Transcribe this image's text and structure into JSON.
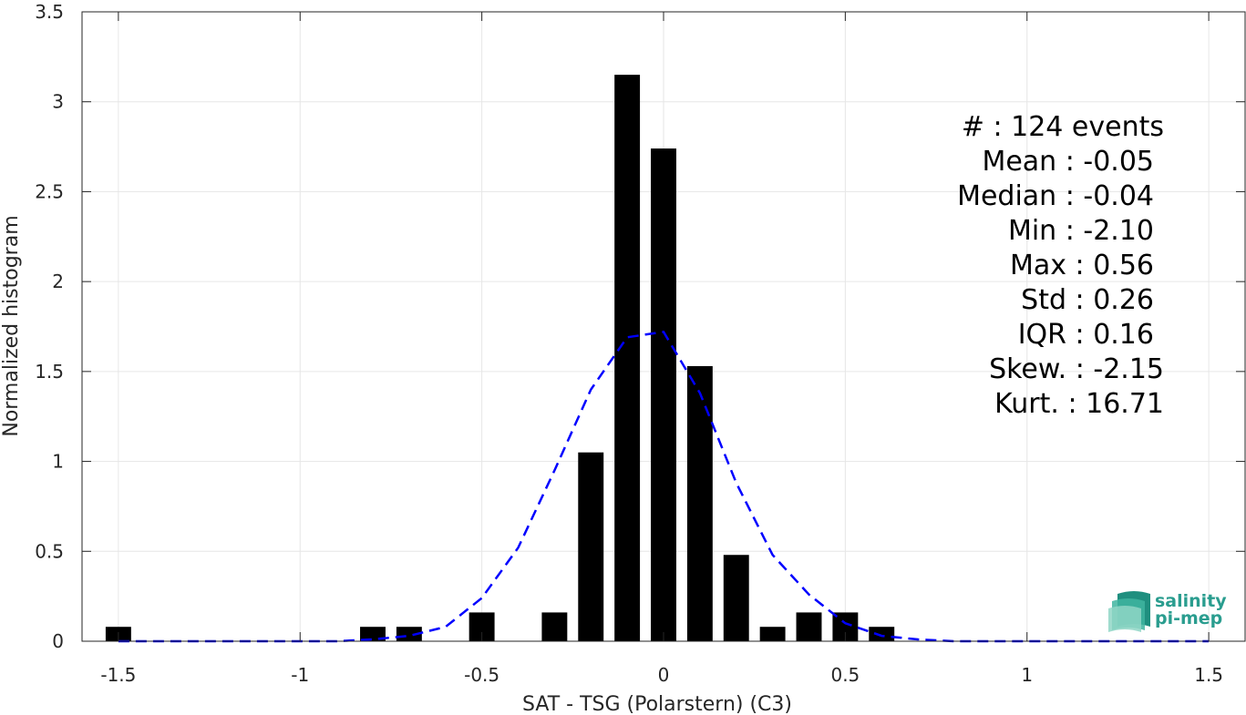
{
  "chart_data": {
    "type": "bar",
    "xlabel": "SAT - TSG (Polarstern) (C3)",
    "ylabel": "Normalized histogram",
    "xlim": [
      -1.6,
      1.6
    ],
    "ylim": [
      0,
      3.5
    ],
    "x_ticks": [
      -1.5,
      -1,
      -0.5,
      0,
      0.5,
      1,
      1.5
    ],
    "x_tick_labels": [
      "-1.5",
      "-1",
      "-0.5",
      "0",
      "0.5",
      "1",
      "1.5"
    ],
    "y_ticks": [
      0,
      0.5,
      1,
      1.5,
      2,
      2.5,
      3,
      3.5
    ],
    "y_tick_labels": [
      "0",
      "0.5",
      "1",
      "1.5",
      "2",
      "2.5",
      "3",
      "3.5"
    ],
    "grid": true,
    "bar_width": 0.07,
    "bars": [
      {
        "x": -1.5,
        "value": 0.08
      },
      {
        "x": -0.8,
        "value": 0.08
      },
      {
        "x": -0.7,
        "value": 0.08
      },
      {
        "x": -0.5,
        "value": 0.16
      },
      {
        "x": -0.3,
        "value": 0.16
      },
      {
        "x": -0.2,
        "value": 1.05
      },
      {
        "x": -0.1,
        "value": 3.15
      },
      {
        "x": 0.0,
        "value": 2.74
      },
      {
        "x": 0.1,
        "value": 1.53
      },
      {
        "x": 0.2,
        "value": 0.48
      },
      {
        "x": 0.3,
        "value": 0.08
      },
      {
        "x": 0.4,
        "value": 0.16
      },
      {
        "x": 0.5,
        "value": 0.16
      },
      {
        "x": 0.6,
        "value": 0.08
      }
    ],
    "bar_color": "#000000",
    "fit_curve": {
      "style": "dashed",
      "color": "#0000ff",
      "x": [
        -1.5,
        -1.4,
        -1.3,
        -1.2,
        -1.1,
        -1.0,
        -0.9,
        -0.8,
        -0.7,
        -0.6,
        -0.5,
        -0.4,
        -0.3,
        -0.2,
        -0.1,
        0.0,
        0.1,
        0.2,
        0.3,
        0.4,
        0.5,
        0.6,
        0.7,
        0.8,
        0.9,
        1.0,
        1.1,
        1.2,
        1.3,
        1.4,
        1.5
      ],
      "y": [
        0.0,
        0.0,
        0.0,
        0.0,
        0.0,
        0.0,
        0.0,
        0.01,
        0.03,
        0.08,
        0.24,
        0.52,
        0.95,
        1.4,
        1.69,
        1.72,
        1.38,
        0.88,
        0.48,
        0.26,
        0.1,
        0.03,
        0.01,
        0.0,
        0.0,
        0.0,
        0.0,
        0.0,
        0.0,
        0.0,
        0.0
      ]
    },
    "stats": [
      "#  : 124 events",
      "Mean : -0.05",
      "Median : -0.04",
      "Min : -2.10",
      "Max : 0.56",
      "Std : 0.26",
      "IQR : 0.16",
      "Skew. : -2.15",
      "Kurt. : 16.71"
    ]
  },
  "logo": {
    "line1": "salinity",
    "line2": "pi-mep",
    "color": "#2a9d8f"
  }
}
